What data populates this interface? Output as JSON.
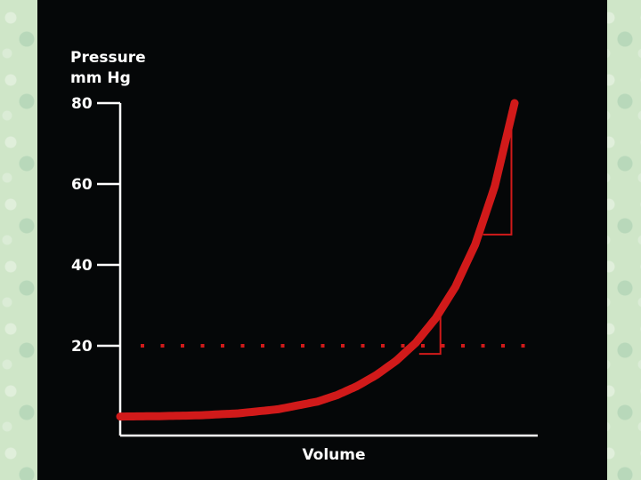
{
  "chart_data": {
    "type": "line",
    "ylabel_line1": "Pressure",
    "ylabel_line2": "mm Hg",
    "xlabel": "Volume",
    "yticks": [
      80,
      60,
      40,
      20
    ],
    "ylim": [
      0,
      80
    ],
    "xlim": [
      0,
      100
    ],
    "threshold": 20,
    "series": [
      {
        "x": [
          0,
          10,
          20,
          30,
          40,
          50,
          55,
          60,
          65,
          70,
          75,
          80,
          85,
          90,
          95,
          100
        ],
        "values": [
          2.5,
          2.6,
          2.8,
          3.3,
          4.3,
          6.2,
          7.8,
          10.0,
          12.8,
          16.3,
          20.8,
          26.8,
          34.6,
          45.0,
          59.5,
          80.0
        ]
      }
    ],
    "slope_triangles": [
      {
        "x0": 75.8,
        "x1": 81.2,
        "y0": 18.0
      },
      {
        "x0": 92.0,
        "x1": 99.2,
        "y0": 47.5
      }
    ],
    "colors": {
      "axis": "#ffffff",
      "curve": "#d11a1a",
      "dots": "#d11a1a",
      "background": "#050708"
    }
  }
}
